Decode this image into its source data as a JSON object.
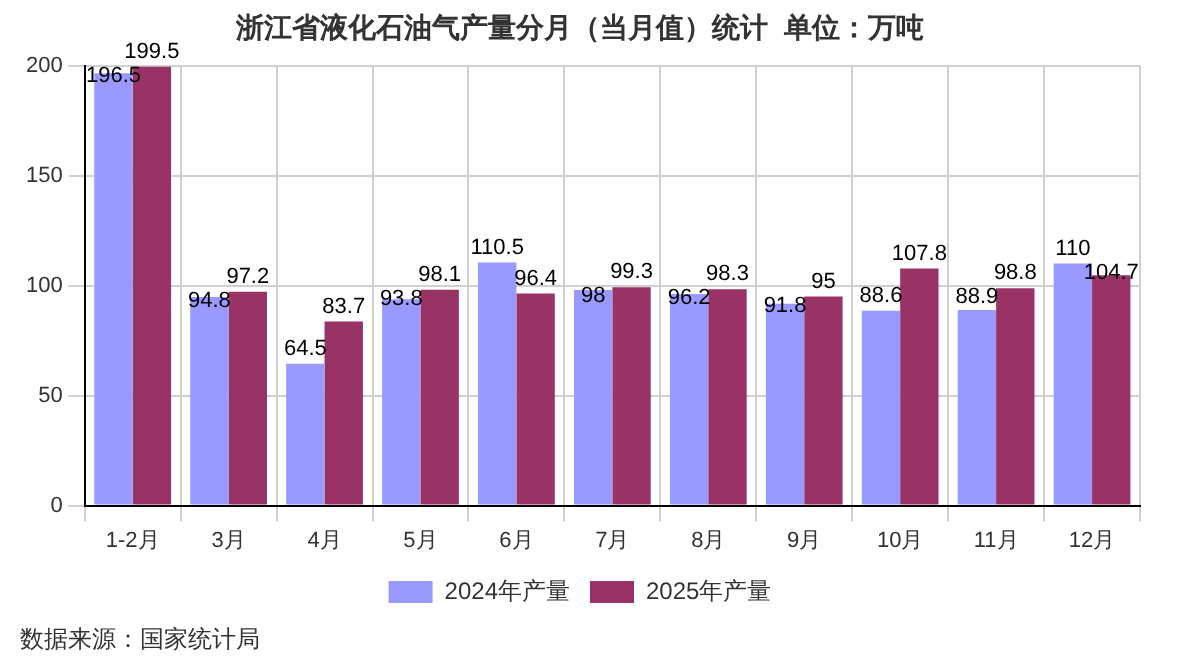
{
  "chart_data": {
    "type": "bar",
    "title": "浙江省液化石油气产量分月（当月值）统计  单位：万吨",
    "categories": [
      "1-2月",
      "3月",
      "4月",
      "5月",
      "6月",
      "7月",
      "8月",
      "9月",
      "10月",
      "11月",
      "12月"
    ],
    "series": [
      {
        "name": "2024年产量",
        "color": "#9999ff",
        "values": [
          196.5,
          94.8,
          64.5,
          93.8,
          110.5,
          98,
          96.2,
          91.8,
          88.6,
          88.9,
          110
        ]
      },
      {
        "name": "2025年产量",
        "color": "#993366",
        "values": [
          199.5,
          97.2,
          83.7,
          98.1,
          96.4,
          99.3,
          98.3,
          95,
          107.8,
          98.8,
          104.7
        ]
      }
    ],
    "ylim": [
      0,
      200
    ],
    "yticks": [
      0,
      50,
      100,
      150,
      200
    ],
    "grid": true,
    "legend": "bottom",
    "data_labels": true,
    "annotations": [
      "数据来源：国家统计局"
    ]
  }
}
